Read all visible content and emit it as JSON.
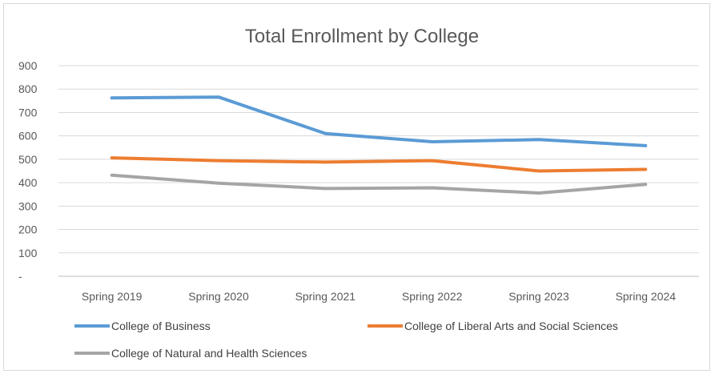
{
  "chart_data": {
    "type": "line",
    "title": "Total Enrollment by College",
    "categories": [
      "Spring 2019",
      "Spring 2020",
      "Spring 2021",
      "Spring 2022",
      "Spring 2023",
      "Spring 2024"
    ],
    "series": [
      {
        "name": "College of Business",
        "color": "#5b9bd5",
        "values": [
          762,
          766,
          610,
          575,
          584,
          558
        ]
      },
      {
        "name": "College of Liberal Arts and Social Sciences",
        "color": "#ed7d31",
        "values": [
          506,
          494,
          488,
          494,
          450,
          457
        ]
      },
      {
        "name": "College of Natural and Health Sciences",
        "color": "#a5a5a5",
        "values": [
          432,
          398,
          375,
          378,
          356,
          393
        ]
      }
    ],
    "ylim": [
      0,
      900
    ],
    "yticks": [
      0,
      100,
      200,
      300,
      400,
      500,
      600,
      700,
      800,
      900
    ],
    "ytick_labels": [
      "-",
      "100",
      "200",
      "300",
      "400",
      "500",
      "600",
      "700",
      "800",
      "900"
    ],
    "grid": true,
    "legend_position": "bottom"
  }
}
